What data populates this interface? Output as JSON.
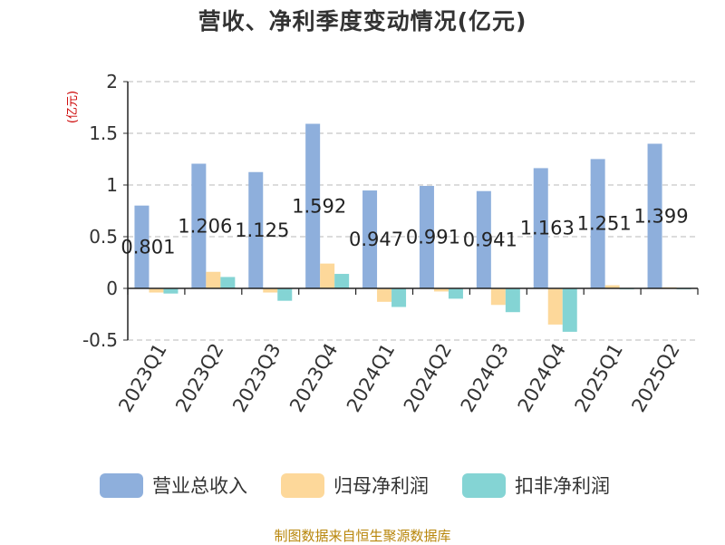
{
  "chart_data": {
    "type": "bar",
    "title": "营收、净利季度变动情况(亿元)",
    "ylabel": "(亿元)",
    "xlabel": "",
    "ylim": [
      -0.5,
      2
    ],
    "yticks": [
      "2",
      "1.5",
      "1",
      "0.5",
      "0",
      "-0.5"
    ],
    "ytick_values": [
      2,
      1.5,
      1,
      0.5,
      0,
      -0.5
    ],
    "grid": true,
    "legend_position": "bottom",
    "categories": [
      "2023Q1",
      "2023Q2",
      "2023Q3",
      "2023Q4",
      "2024Q1",
      "2024Q2",
      "2024Q3",
      "2024Q4",
      "2025Q1",
      "2025Q2"
    ],
    "series": [
      {
        "name": "营业总收入",
        "color": "#8eafdc",
        "values": [
          0.801,
          1.206,
          1.125,
          1.592,
          0.947,
          0.991,
          0.941,
          1.163,
          1.251,
          1.399
        ],
        "labels": [
          "0.801",
          "1.206",
          "1.125",
          "1.592",
          "0.947",
          "0.991",
          "0.941",
          "1.163",
          "1.251",
          "1.399"
        ]
      },
      {
        "name": "归母净利润",
        "color": "#fdd89a",
        "values": [
          -0.04,
          0.16,
          -0.04,
          0.24,
          -0.13,
          -0.03,
          -0.16,
          -0.35,
          0.03,
          0.01
        ]
      },
      {
        "name": "扣非净利润",
        "color": "#84d4d4",
        "values": [
          -0.05,
          0.11,
          -0.12,
          0.14,
          -0.18,
          -0.1,
          -0.23,
          -0.42,
          -0.01,
          -0.01
        ]
      }
    ],
    "source": "制图数据来自恒生聚源数据库"
  }
}
